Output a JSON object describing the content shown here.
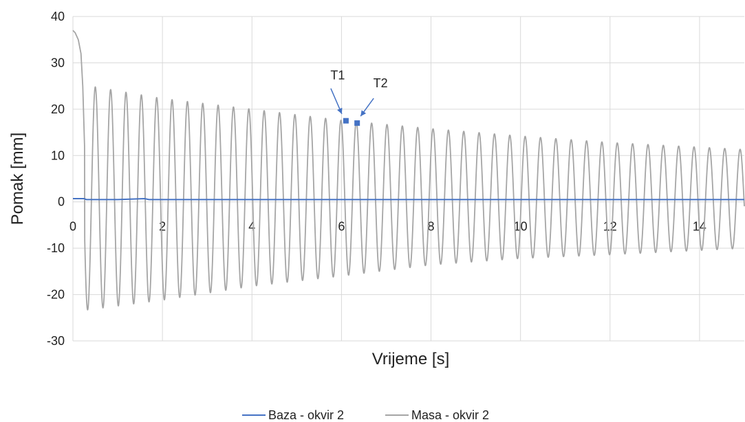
{
  "chart_data": {
    "type": "line",
    "xlabel": "Vrijeme [s]",
    "ylabel": "Pomak [mm]",
    "xlim": [
      0,
      15
    ],
    "ylim": [
      -30,
      40
    ],
    "xticks": [
      "0",
      "2",
      "4",
      "6",
      "8",
      "10",
      "12",
      "14"
    ],
    "yticks": [
      "40",
      "30",
      "20",
      "10",
      "0",
      "-10",
      "-20",
      "-30"
    ],
    "grid": true,
    "legend_position": "bottom",
    "colors": {
      "baza": "#4472C4",
      "masa": "#A5A5A5",
      "marker": "#4472C4"
    },
    "series": [
      {
        "name": "Baza - okvir 2",
        "x": [
          0,
          0.25,
          0.3,
          1.0,
          1.6,
          1.7,
          3.0,
          5.0,
          7.0,
          9.0,
          11.0,
          13.0,
          15.0
        ],
        "y": [
          0.7,
          0.7,
          0.5,
          0.5,
          0.7,
          0.5,
          0.5,
          0.5,
          0.5,
          0.5,
          0.5,
          0.5,
          0.5
        ]
      },
      {
        "name": "Masa - okvir 2",
        "initial": {
          "x": [
            0,
            0.05,
            0.12,
            0.18,
            0.22,
            0.26
          ],
          "y": [
            37,
            36.5,
            35,
            32,
            25,
            12
          ]
        },
        "first_peak_time": 0.5,
        "period": 0.343,
        "max_envelope": {
          "x": [
            0.5,
            2,
            4,
            6,
            8,
            10,
            12,
            15
          ],
          "y": [
            24.8,
            22.3,
            20.0,
            17.6,
            15.8,
            14.2,
            12.8,
            11.3
          ]
        },
        "min_envelope": {
          "x": [
            0.33,
            2,
            4,
            6,
            8,
            10,
            12,
            15
          ],
          "y": [
            -23.3,
            -21.2,
            -18.2,
            -16.0,
            -13.6,
            -12.2,
            -11.4,
            -10.0
          ]
        }
      }
    ],
    "annotations": [
      {
        "label": "T1",
        "x": 6.1,
        "y": 17.5
      },
      {
        "label": "T2",
        "x": 6.35,
        "y": 17.0
      }
    ]
  }
}
